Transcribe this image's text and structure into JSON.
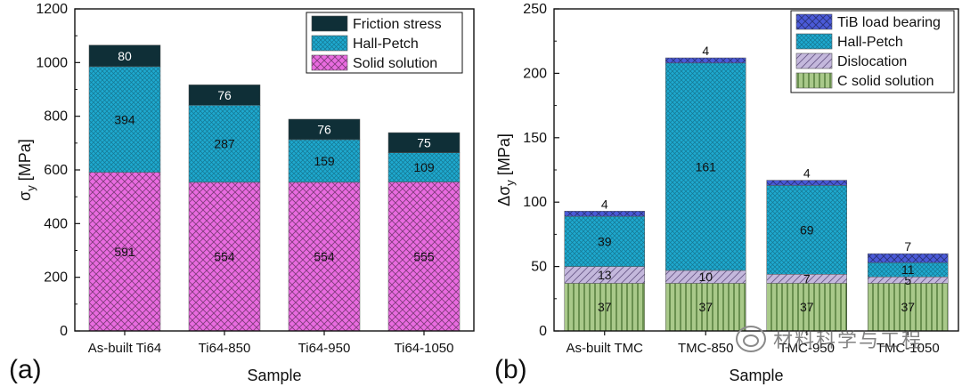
{
  "colors": {
    "friction": "#0f2f37",
    "hall_petch": "#1ea9cf",
    "solid_solution": "#e96be0",
    "tib": "#4a5ad8",
    "dislocation": "#c4b8dc",
    "c_solid": "#a9c98a"
  },
  "chart_data": [
    {
      "type": "bar",
      "stacked": true,
      "panel_label": "(a)",
      "xlabel": "Sample",
      "ylabel_base": "σ",
      "ylabel_sub": "y",
      "ylabel_unit": " [MPa]",
      "ylim": [
        0,
        1200
      ],
      "yticks": [
        0,
        200,
        400,
        600,
        800,
        1000,
        1200
      ],
      "legend_position": "top-right",
      "categories": [
        "As-built Ti64",
        "Ti64-850",
        "Ti64-950",
        "Ti64-1050"
      ],
      "series": [
        {
          "name": "Solid solution",
          "values": [
            591,
            554,
            554,
            555
          ],
          "pattern": "crosshatch",
          "colorKey": "solid_solution"
        },
        {
          "name": "Hall-Petch",
          "values": [
            394,
            287,
            159,
            109
          ],
          "pattern": "dots",
          "colorKey": "hall_petch"
        },
        {
          "name": "Friction stress",
          "values": [
            80,
            76,
            76,
            75
          ],
          "pattern": "solid",
          "colorKey": "friction"
        }
      ],
      "legend_order": [
        2,
        1,
        0
      ]
    },
    {
      "type": "bar",
      "stacked": true,
      "panel_label": "(b)",
      "xlabel": "Sample",
      "ylabel_base": "Δσ",
      "ylabel_sub": "y",
      "ylabel_unit": " [MPa]",
      "ylim": [
        0,
        250
      ],
      "yticks": [
        0,
        50,
        100,
        150,
        200,
        250
      ],
      "legend_position": "top-right",
      "categories": [
        "As-built TMC",
        "TMC-850",
        "TMC-950",
        "TMC-1050"
      ],
      "series": [
        {
          "name": "C solid solution",
          "values": [
            37,
            37,
            37,
            37
          ],
          "pattern": "vlines",
          "colorKey": "c_solid"
        },
        {
          "name": "Dislocation",
          "values": [
            13,
            10,
            7,
            5
          ],
          "pattern": "diag",
          "colorKey": "dislocation"
        },
        {
          "name": "Hall-Petch",
          "values": [
            39,
            161,
            69,
            11
          ],
          "pattern": "dots",
          "colorKey": "hall_petch"
        },
        {
          "name": "TiB load bearing",
          "values": [
            4,
            4,
            4,
            7
          ],
          "pattern": "crosshatch",
          "colorKey": "tib"
        }
      ],
      "legend_order": [
        3,
        2,
        1,
        0
      ]
    }
  ],
  "watermark": "材料科学与工程"
}
